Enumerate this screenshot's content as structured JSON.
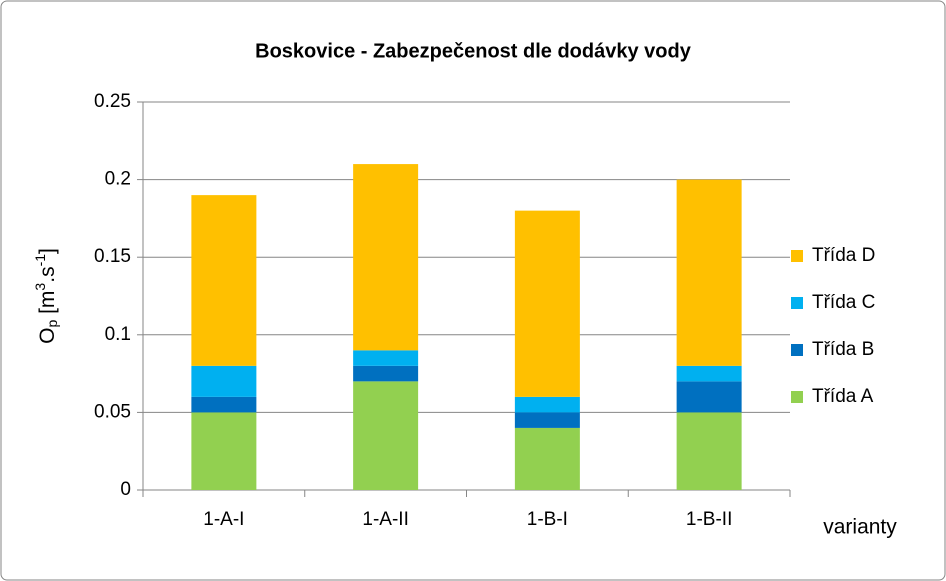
{
  "chart_data": {
    "type": "stacked_bar",
    "title": "Boskovice - Zabezpečenost dle dodávky vody",
    "ylabel": {
      "parts": [
        "O",
        "p",
        " [m",
        "3",
        ".s",
        "-1",
        "]"
      ]
    },
    "xlabel": "varianty",
    "categories": [
      "1-A-I",
      "1-A-II",
      "1-B-I",
      "1-B-II"
    ],
    "series": [
      {
        "name": "Třída A",
        "color": "#92d050",
        "values": [
          0.05,
          0.07,
          0.04,
          0.05
        ]
      },
      {
        "name": "Třída B",
        "color": "#0070c0",
        "values": [
          0.01,
          0.01,
          0.01,
          0.02
        ]
      },
      {
        "name": "Třída C",
        "color": "#00b0f0",
        "values": [
          0.02,
          0.01,
          0.01,
          0.01
        ]
      },
      {
        "name": "Třída D",
        "color": "#ffc000",
        "values": [
          0.11,
          0.12,
          0.12,
          0.12
        ]
      }
    ],
    "ylim": [
      0,
      0.25
    ],
    "yticks": [
      0,
      0.05,
      0.1,
      0.15,
      0.2,
      0.25
    ],
    "grid": true,
    "legend": "right"
  }
}
